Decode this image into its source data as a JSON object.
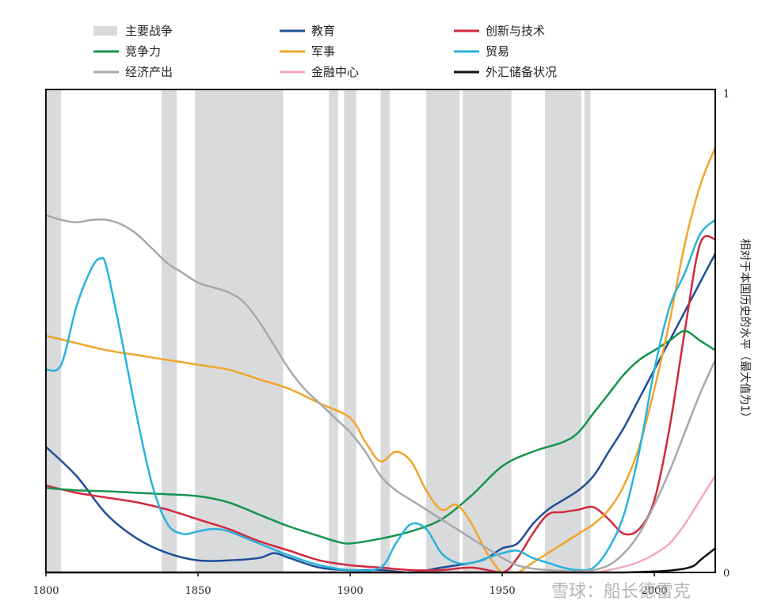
{
  "chart_data": {
    "type": "line",
    "title": "",
    "xlabel": "",
    "ylabel": "相对于本国历史的水平（最大值为1）",
    "xlim": [
      1800,
      2020
    ],
    "ylim": [
      0,
      1
    ],
    "x_ticks": [
      1800,
      1850,
      1900,
      1950,
      2000
    ],
    "x_tick_labels": [
      "1800",
      "1850",
      "1900",
      "1950",
      "2000"
    ],
    "y_ticks": [
      0,
      1
    ],
    "y_tick_labels": [
      "0",
      "1"
    ],
    "y_axis_side": "right",
    "grid": false,
    "legend_position": "top",
    "legend_war_label": "主要战争",
    "war_color": "#d9dadc",
    "wars": [
      [
        1800,
        1805
      ],
      [
        1838,
        1843
      ],
      [
        1849,
        1878
      ],
      [
        1893,
        1896
      ],
      [
        1898,
        1902
      ],
      [
        1910,
        1913
      ],
      [
        1925,
        1936
      ],
      [
        1937,
        1953
      ],
      [
        1964,
        1976
      ],
      [
        1977,
        1979
      ]
    ],
    "series": [
      {
        "name": "教育",
        "color": "#1f4e96",
        "x": [
          1800,
          1810,
          1820,
          1830,
          1840,
          1850,
          1860,
          1870,
          1875,
          1880,
          1890,
          1900,
          1910,
          1920,
          1930,
          1940,
          1945,
          1950,
          1955,
          1960,
          1965,
          1970,
          1975,
          1980,
          1985,
          1990,
          1995,
          2000,
          2005,
          2010,
          2015,
          2020
        ],
        "y": [
          0.26,
          0.2,
          0.12,
          0.07,
          0.04,
          0.025,
          0.025,
          0.03,
          0.04,
          0.03,
          0.01,
          0.005,
          0.005,
          0.0,
          0.01,
          0.02,
          0.03,
          0.05,
          0.06,
          0.1,
          0.13,
          0.15,
          0.17,
          0.2,
          0.25,
          0.3,
          0.36,
          0.42,
          0.48,
          0.54,
          0.6,
          0.66
        ]
      },
      {
        "name": "创新与技术",
        "color": "#d1293d",
        "x": [
          1800,
          1810,
          1820,
          1830,
          1840,
          1850,
          1860,
          1870,
          1880,
          1890,
          1900,
          1910,
          1920,
          1930,
          1940,
          1950,
          1955,
          1960,
          1965,
          1970,
          1975,
          1980,
          1985,
          1990,
          1995,
          2000,
          2005,
          2010,
          2015,
          2020
        ],
        "y": [
          0.18,
          0.165,
          0.155,
          0.145,
          0.13,
          0.11,
          0.09,
          0.065,
          0.045,
          0.025,
          0.015,
          0.01,
          0.005,
          0.005,
          0.01,
          0.0,
          0.03,
          0.08,
          0.12,
          0.125,
          0.13,
          0.135,
          0.11,
          0.08,
          0.09,
          0.15,
          0.3,
          0.5,
          0.68,
          0.69
        ]
      },
      {
        "name": "竞争力",
        "color": "#16944e",
        "x": [
          1800,
          1810,
          1820,
          1830,
          1840,
          1850,
          1860,
          1870,
          1880,
          1890,
          1895,
          1900,
          1910,
          1920,
          1930,
          1940,
          1950,
          1960,
          1970,
          1975,
          1980,
          1985,
          1990,
          1995,
          2000,
          2005,
          2010,
          2015,
          2020
        ],
        "y": [
          0.175,
          0.17,
          0.168,
          0.165,
          0.162,
          0.158,
          0.145,
          0.12,
          0.095,
          0.075,
          0.065,
          0.06,
          0.07,
          0.085,
          0.11,
          0.16,
          0.22,
          0.25,
          0.27,
          0.29,
          0.33,
          0.37,
          0.41,
          0.44,
          0.46,
          0.48,
          0.5,
          0.48,
          0.46
        ]
      },
      {
        "name": "军事",
        "color": "#f2a52b",
        "x": [
          1800,
          1810,
          1820,
          1830,
          1840,
          1850,
          1860,
          1870,
          1880,
          1890,
          1900,
          1905,
          1910,
          1915,
          1920,
          1925,
          1930,
          1935,
          1940,
          1945,
          1950,
          1955,
          1960,
          1965,
          1970,
          1975,
          1980,
          1985,
          1990,
          1995,
          2000,
          2005,
          2010,
          2015,
          2020
        ],
        "y": [
          0.49,
          0.475,
          0.46,
          0.45,
          0.44,
          0.43,
          0.42,
          0.4,
          0.38,
          0.35,
          0.32,
          0.27,
          0.23,
          0.25,
          0.23,
          0.17,
          0.13,
          0.14,
          0.1,
          0.04,
          0.0,
          0.0,
          0.02,
          0.04,
          0.06,
          0.08,
          0.1,
          0.13,
          0.18,
          0.26,
          0.38,
          0.52,
          0.68,
          0.8,
          0.88
        ]
      },
      {
        "name": "贸易",
        "color": "#27b3dd",
        "x": [
          1800,
          1805,
          1810,
          1815,
          1818,
          1820,
          1825,
          1830,
          1835,
          1840,
          1845,
          1850,
          1855,
          1860,
          1870,
          1880,
          1890,
          1900,
          1910,
          1915,
          1920,
          1925,
          1930,
          1935,
          1940,
          1945,
          1950,
          1955,
          1960,
          1965,
          1970,
          1975,
          1980,
          1985,
          1990,
          1995,
          2000,
          2005,
          2010,
          2015,
          2020
        ],
        "y": [
          0.42,
          0.43,
          0.55,
          0.63,
          0.65,
          0.63,
          0.48,
          0.32,
          0.18,
          0.1,
          0.08,
          0.085,
          0.09,
          0.085,
          0.06,
          0.035,
          0.015,
          0.005,
          0.01,
          0.06,
          0.1,
          0.09,
          0.04,
          0.02,
          0.02,
          0.03,
          0.04,
          0.045,
          0.03,
          0.02,
          0.01,
          0.005,
          0.01,
          0.05,
          0.12,
          0.25,
          0.42,
          0.55,
          0.62,
          0.7,
          0.73
        ]
      },
      {
        "name": "经济产出",
        "color": "#a7a8ac",
        "x": [
          1800,
          1805,
          1810,
          1815,
          1820,
          1825,
          1830,
          1835,
          1840,
          1845,
          1850,
          1855,
          1860,
          1865,
          1870,
          1875,
          1880,
          1885,
          1890,
          1895,
          1900,
          1905,
          1910,
          1915,
          1920,
          1925,
          1930,
          1935,
          1940,
          1945,
          1950,
          1955,
          1960,
          1965,
          1970,
          1975,
          1980,
          1985,
          1990,
          1995,
          2000,
          2005,
          2010,
          2015,
          2020
        ],
        "y": [
          0.74,
          0.73,
          0.725,
          0.73,
          0.73,
          0.72,
          0.7,
          0.67,
          0.64,
          0.62,
          0.6,
          0.59,
          0.58,
          0.56,
          0.52,
          0.47,
          0.42,
          0.38,
          0.35,
          0.32,
          0.29,
          0.25,
          0.2,
          0.17,
          0.15,
          0.13,
          0.11,
          0.09,
          0.07,
          0.05,
          0.03,
          0.015,
          0.008,
          0.005,
          0.003,
          0.002,
          0.005,
          0.015,
          0.04,
          0.08,
          0.14,
          0.21,
          0.29,
          0.37,
          0.44
        ]
      },
      {
        "name": "金融中心",
        "color": "#f2a9bb",
        "x": [
          1800,
          1850,
          1900,
          1950,
          1970,
          1980,
          1985,
          1990,
          1995,
          2000,
          2005,
          2010,
          2015,
          2020
        ],
        "y": [
          0.0,
          0.0,
          0.0,
          0.0,
          0.0,
          0.0,
          0.005,
          0.012,
          0.022,
          0.038,
          0.06,
          0.1,
          0.15,
          0.2
        ]
      },
      {
        "name": "外汇储备状况",
        "color": "#111111",
        "x": [
          1800,
          1900,
          1970,
          1980,
          1990,
          2000,
          2005,
          2010,
          2013,
          2015,
          2018,
          2020
        ],
        "y": [
          0.0,
          0.0,
          0.0,
          0.0,
          0.0,
          0.002,
          0.004,
          0.008,
          0.014,
          0.025,
          0.04,
          0.05
        ]
      }
    ]
  },
  "watermark": {
    "text": "雪球：船长德雷克"
  }
}
